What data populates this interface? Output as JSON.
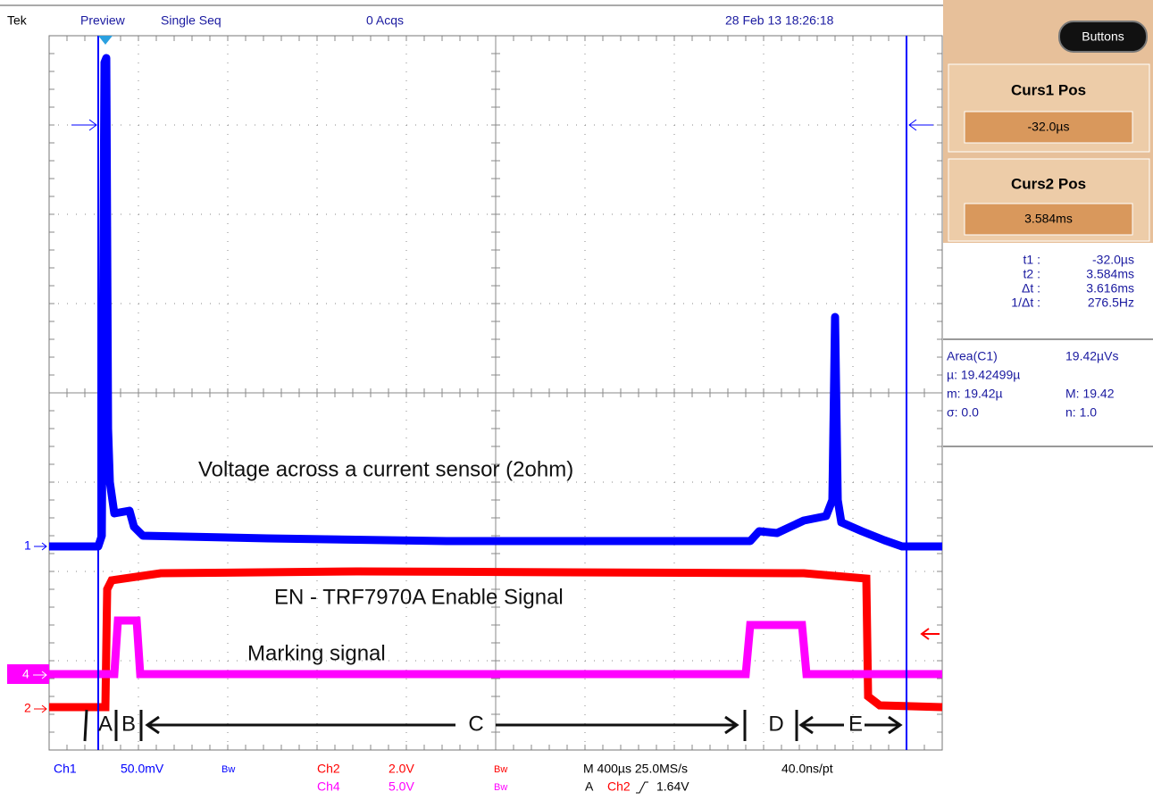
{
  "header": {
    "brand": "Tek",
    "mode": "Preview",
    "acquisition": "Single Seq",
    "count": "0 Acqs",
    "timestamp": "28 Feb 13 18:26:18"
  },
  "side_panel": {
    "button": "Buttons",
    "cursor1": {
      "title": "Curs1 Pos",
      "value": "-32.0µs"
    },
    "cursor2": {
      "title": "Curs2 Pos",
      "value": "3.584ms"
    }
  },
  "readouts": {
    "rows": [
      [
        "t1 :",
        "-32.0µs"
      ],
      [
        "t2 :",
        "3.584ms"
      ],
      [
        "Δt :",
        "3.616ms"
      ],
      [
        "1/Δt :",
        "276.5Hz"
      ]
    ]
  },
  "measurement": {
    "rows": [
      [
        "Area(C1)",
        "19.42µVs"
      ],
      [
        "µ: 19.42499µ",
        ""
      ],
      [
        "m: 19.42µ",
        "M: 19.42"
      ],
      [
        "σ: 0.0",
        "n: 1.0"
      ]
    ]
  },
  "annotations": {
    "current": "Voltage across a current sensor (2ohm)",
    "enable": "EN - TRF7970A Enable Signal",
    "marking": "Marking signal",
    "phases": [
      "A",
      "B",
      "C",
      "D",
      "E"
    ]
  },
  "markers": [
    "1",
    "4",
    "2"
  ],
  "footer": {
    "ch1": "Ch1",
    "ch1_scale": "50.0mV",
    "bw1": "Bw",
    "ch2": "Ch2",
    "ch2_scale": "2.0V",
    "bw2": "Bw",
    "ch4": "Ch4",
    "ch4_scale": "5.0V",
    "bw4": "Bw",
    "timebase": "M 400µs 25.0MS/s",
    "resolution": "40.0ns/pt",
    "trigger": "A",
    "trigger_source": "Ch2",
    "trigger_level": "1.64V"
  }
}
